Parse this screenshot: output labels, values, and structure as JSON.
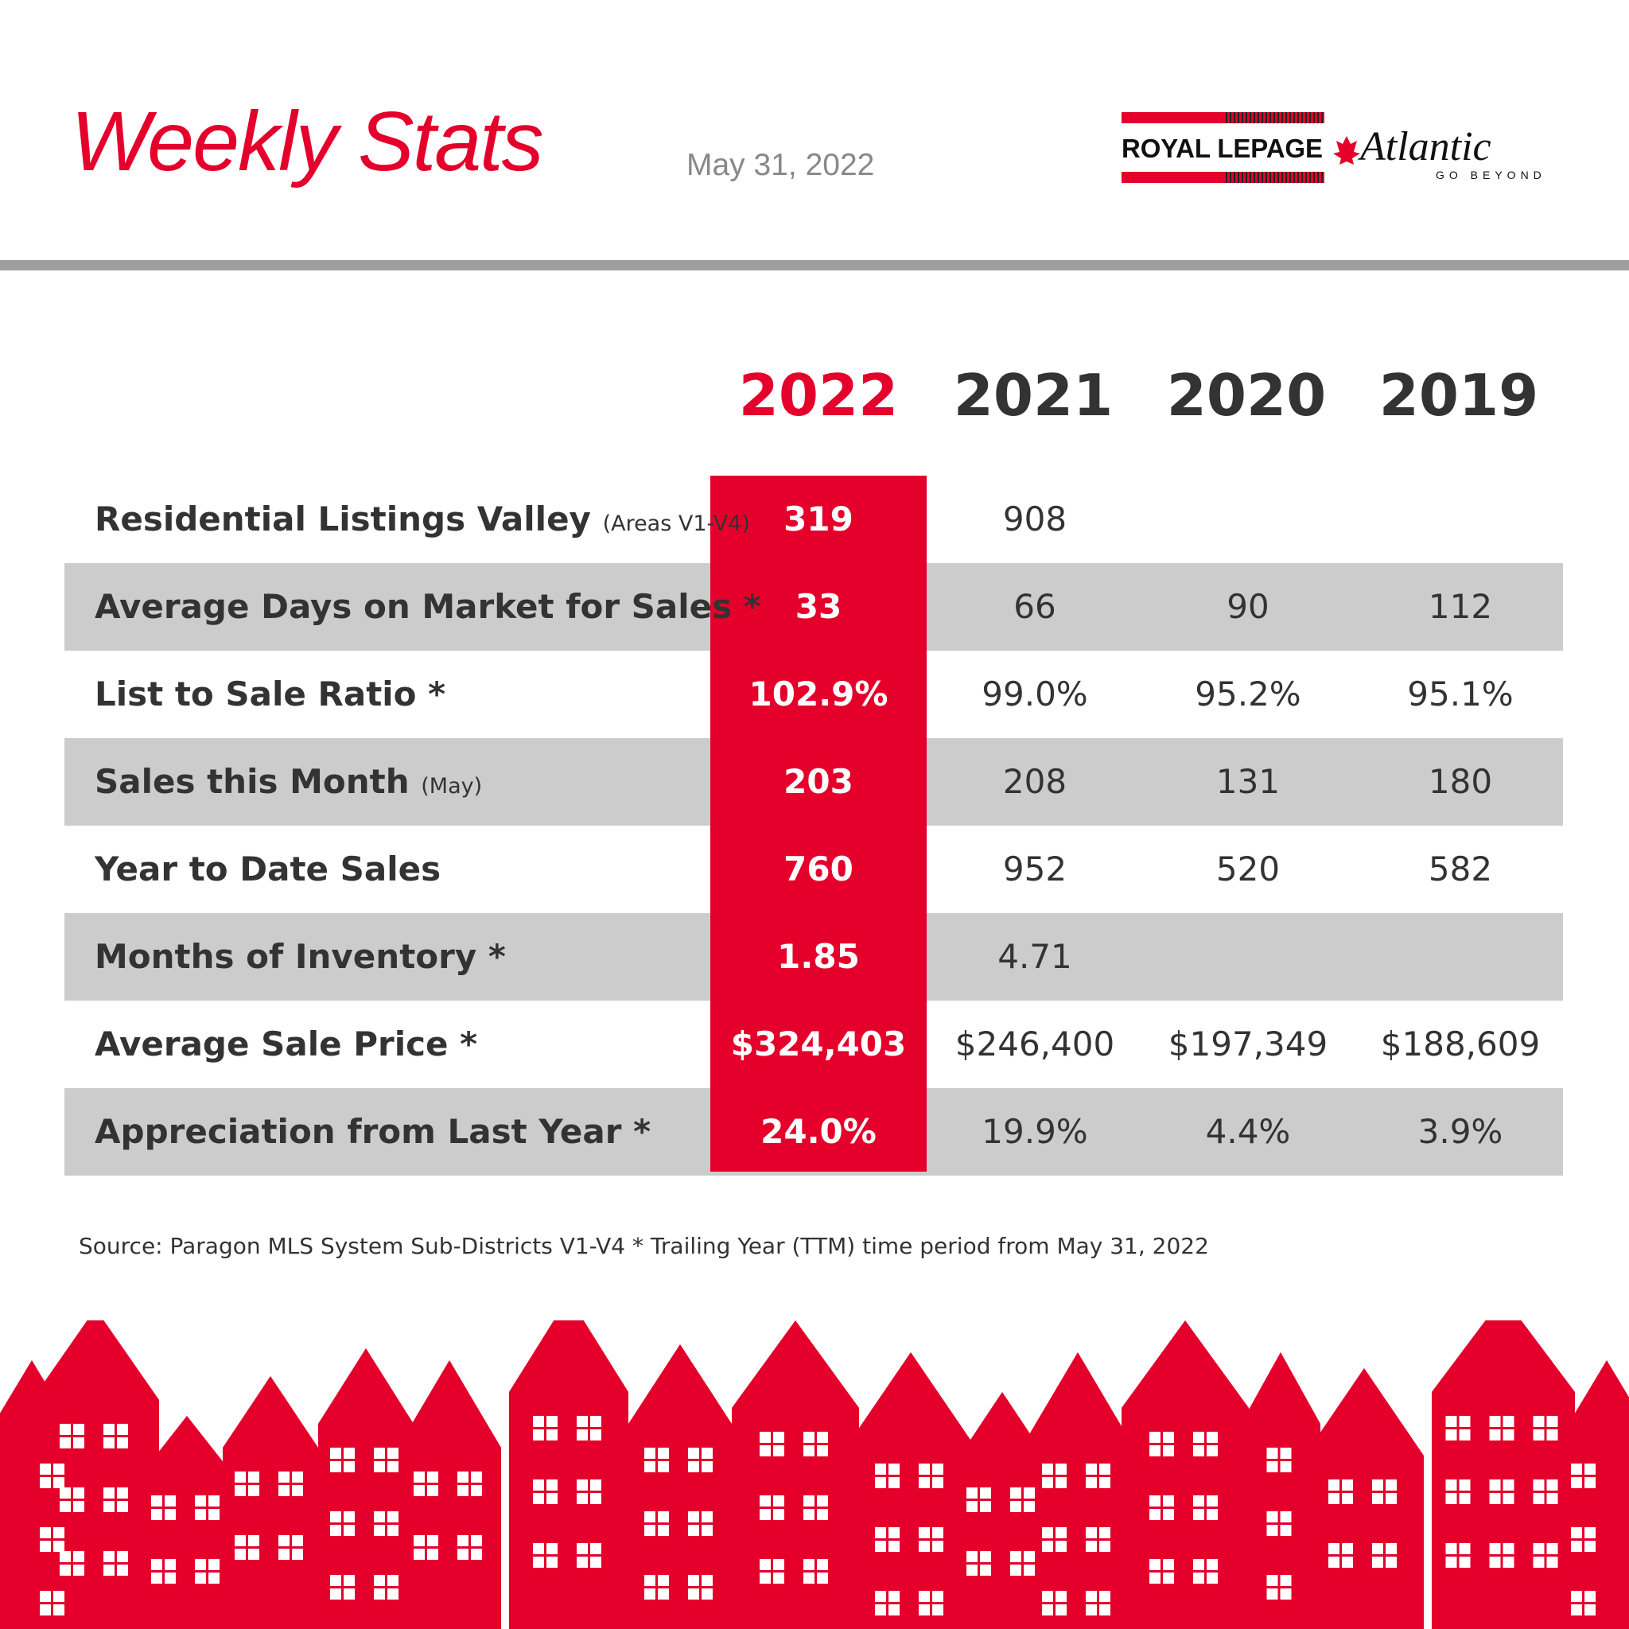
{
  "header": {
    "title": "Weekly Stats",
    "date": "May 31, 2022",
    "logo": {
      "brand": "ROYAL LEPAGE",
      "region": "Atlantic",
      "tagline": "GO BEYOND"
    }
  },
  "table": {
    "columns": [
      "2022",
      "2021",
      "2020",
      "2019"
    ],
    "rows": [
      {
        "label": "Residential Listings Valley",
        "note": "(Areas V1-V4)",
        "values": [
          "319",
          "908",
          null,
          null
        ]
      },
      {
        "label": "Average Days on Market for Sales *",
        "values": [
          "33",
          "66",
          "90",
          "112"
        ]
      },
      {
        "label": "List to Sale Ratio *",
        "values": [
          "102.9%",
          "99.0%",
          "95.2%",
          "95.1%"
        ]
      },
      {
        "label": "Sales this Month",
        "note": "(May)",
        "values": [
          "203",
          "208",
          "131",
          "180"
        ]
      },
      {
        "label": "Year to Date Sales",
        "values": [
          "760",
          "952",
          "520",
          "582"
        ]
      },
      {
        "label": "Months of Inventory *",
        "values": [
          "1.85",
          "4.71",
          null,
          null
        ]
      },
      {
        "label": "Average Sale Price *",
        "values": [
          "$324,403",
          "$246,400",
          "$197,349",
          "$188,609"
        ]
      },
      {
        "label": "Appreciation from Last Year *",
        "values": [
          "24.0%",
          "19.9%",
          "4.4%",
          "3.9%"
        ]
      }
    ]
  },
  "footer": {
    "source": "Source: Paragon MLS System Sub-Districts V1-V4 * Trailing Year (TTM) time period from May 31, 2022"
  }
}
